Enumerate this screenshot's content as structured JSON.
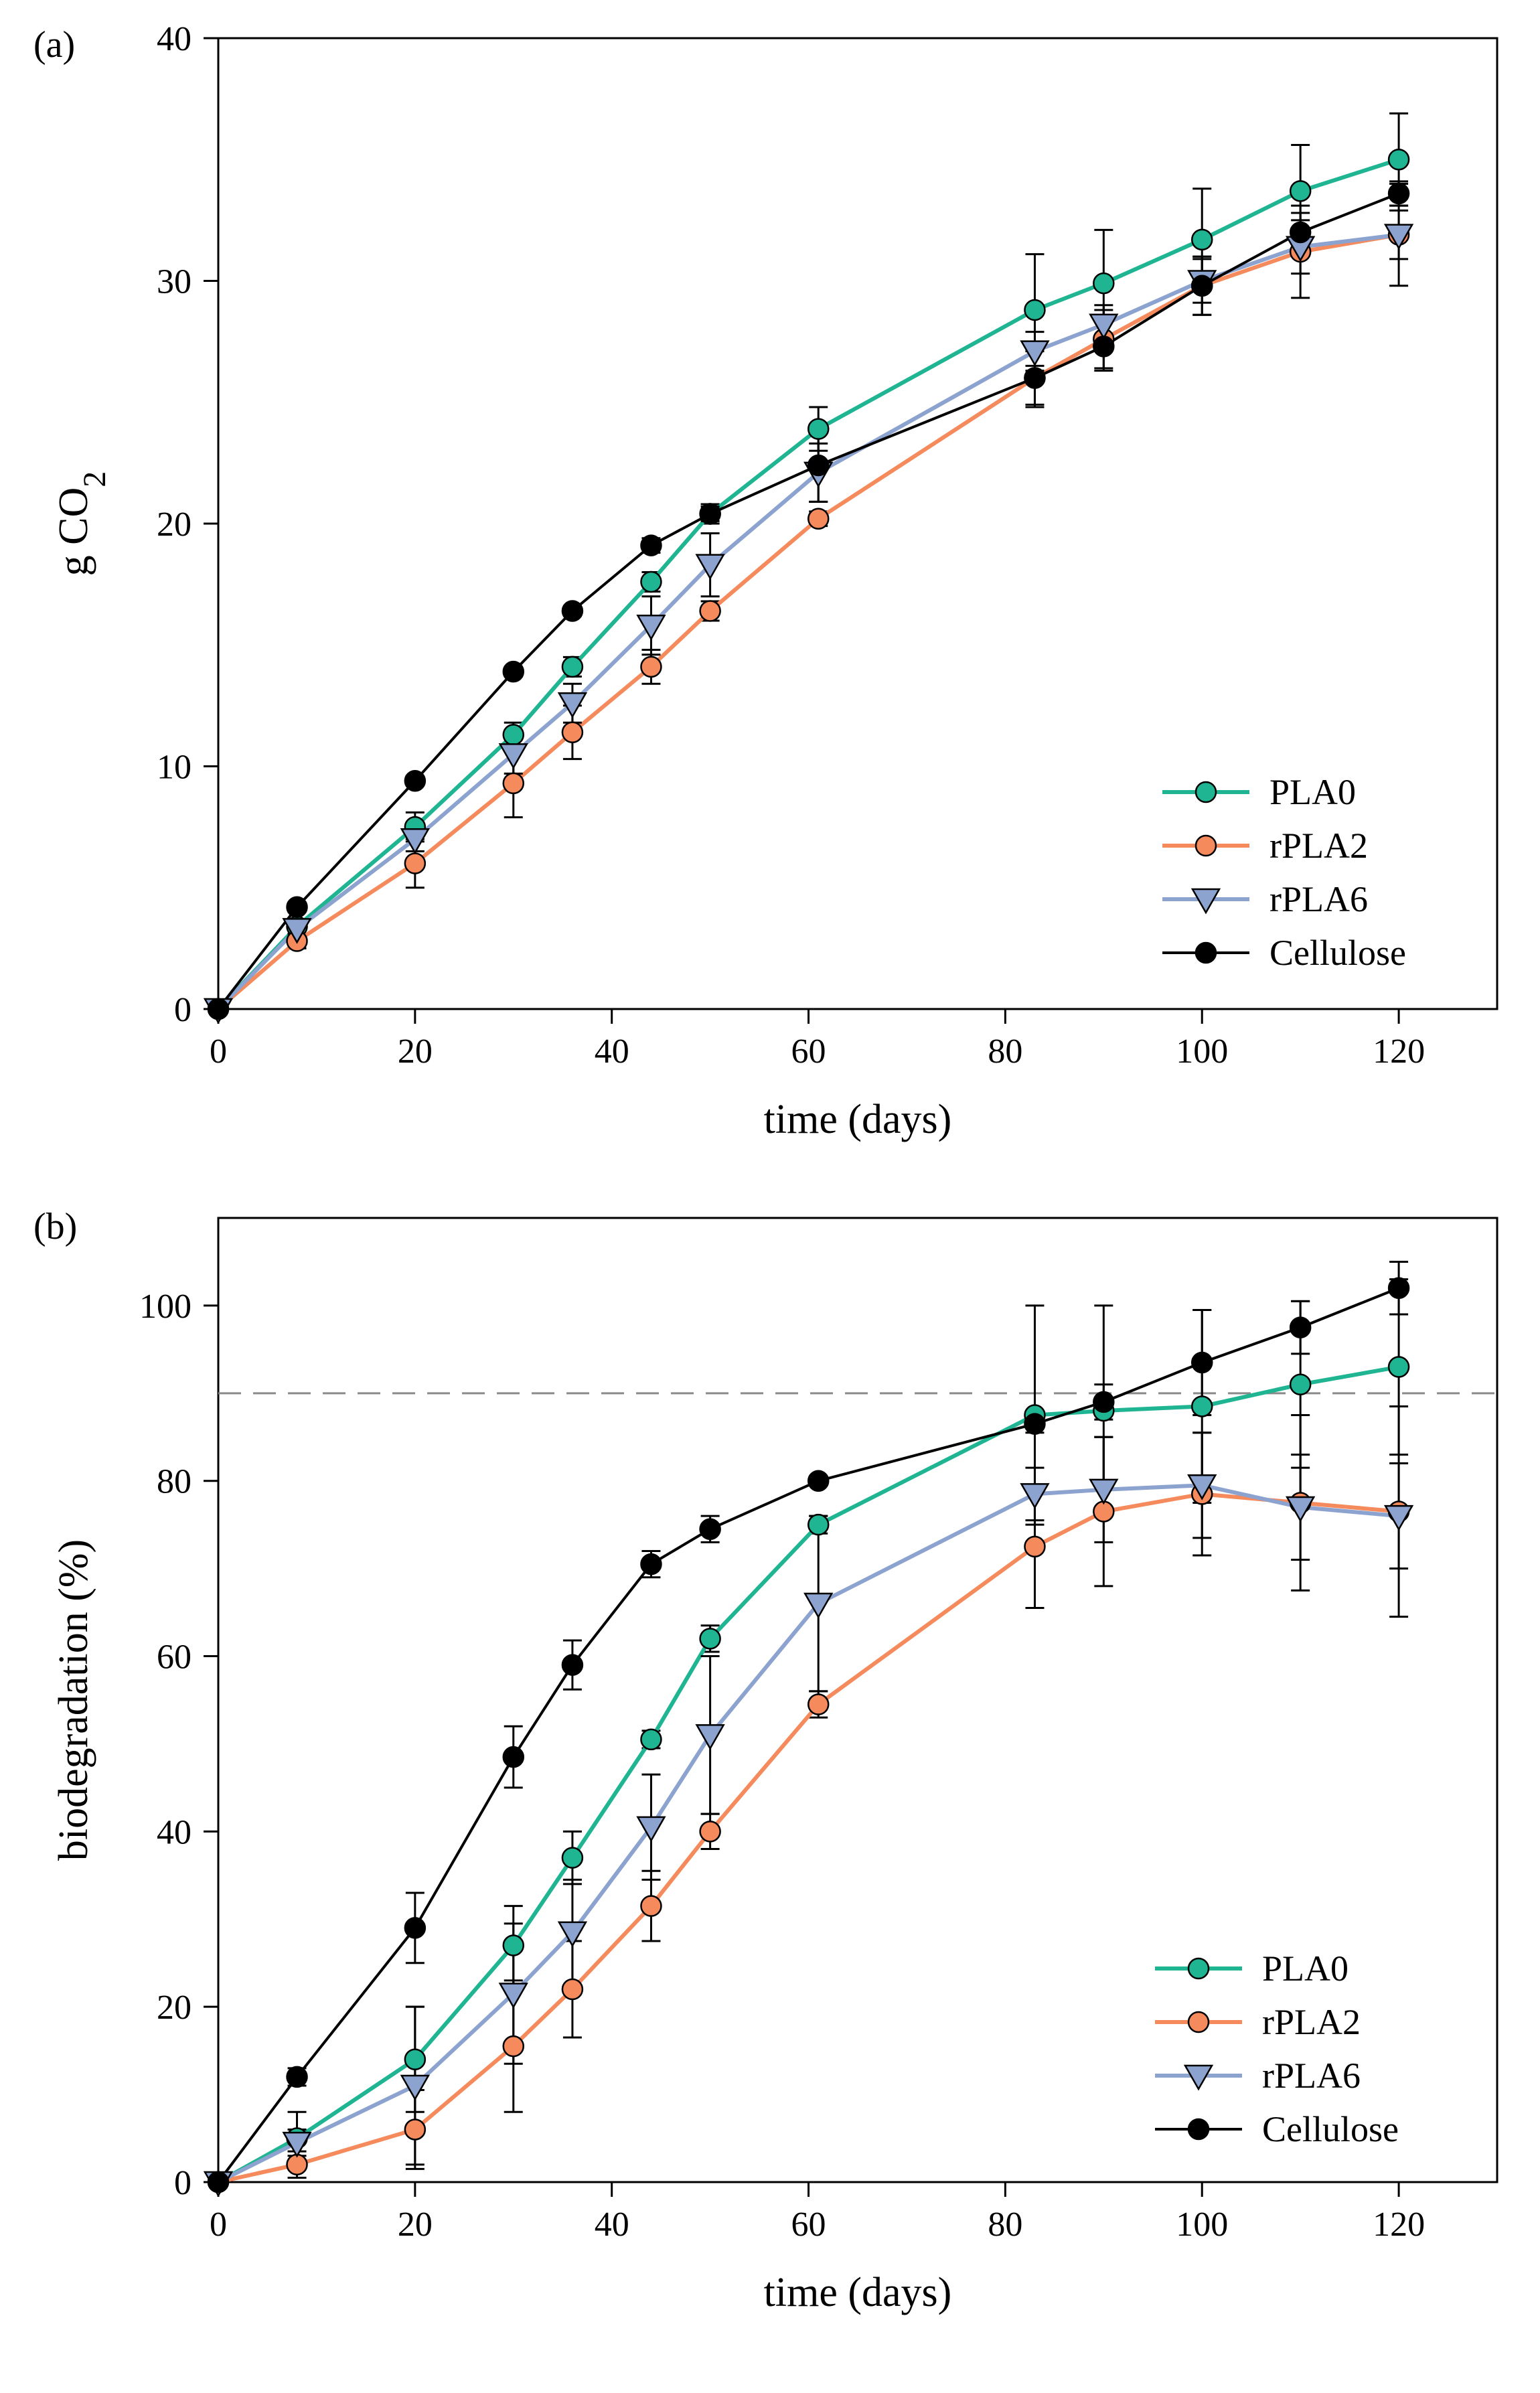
{
  "chart_data": [
    {
      "panel_label": "(a)",
      "type": "line",
      "xlabel": "time (days)",
      "ylabel_main": "g CO",
      "ylabel_sub": "2",
      "xlim": [
        0,
        130
      ],
      "ylim": [
        0,
        40
      ],
      "xticks": [
        0,
        20,
        40,
        60,
        80,
        100,
        120
      ],
      "yticks": [
        0,
        10,
        20,
        30,
        40
      ],
      "x": [
        0,
        8,
        20,
        30,
        36,
        44,
        50,
        61,
        83,
        90,
        100,
        110,
        120
      ],
      "series": [
        {
          "name": "PLA0",
          "marker": "circle",
          "color": "#1fb592",
          "values": [
            0,
            3.4,
            7.5,
            11.3,
            14.1,
            17.6,
            20.4,
            23.9,
            28.8,
            29.9,
            31.7,
            33.7,
            35.0
          ],
          "errors": [
            0,
            0.3,
            0.6,
            0.5,
            0.4,
            0.4,
            0.4,
            0.9,
            2.3,
            2.2,
            2.1,
            1.9,
            1.9
          ]
        },
        {
          "name": "rPLA2",
          "marker": "circle",
          "color": "#f58a5c",
          "values": [
            0,
            2.8,
            6.0,
            9.3,
            11.4,
            14.1,
            16.4,
            20.2,
            26.0,
            27.6,
            29.8,
            31.2,
            31.9
          ],
          "errors": [
            0,
            0.3,
            1.0,
            1.4,
            1.1,
            0.7,
            0.4,
            0.3,
            1.1,
            1.2,
            1.2,
            1.9,
            2.1
          ]
        },
        {
          "name": "rPLA6",
          "marker": "triangle-down",
          "color": "#8ca3cf",
          "values": [
            0,
            3.3,
            7.0,
            10.5,
            12.6,
            15.8,
            18.3,
            22.1,
            27.1,
            28.2,
            30.0,
            31.4,
            31.9
          ],
          "errors": [
            0,
            0.3,
            0.5,
            0.8,
            0.8,
            1.2,
            1.3,
            1.2,
            0.8,
            0.8,
            0.9,
            1.1,
            1.0
          ]
        },
        {
          "name": "Cellulose",
          "marker": "circle",
          "color": "#000000",
          "values": [
            0,
            4.2,
            9.4,
            13.9,
            16.4,
            19.1,
            20.4,
            22.4,
            26.0,
            27.3,
            29.8,
            32.0,
            33.6
          ],
          "errors": [
            0,
            0.2,
            0.2,
            0.2,
            0.2,
            0.3,
            0.3,
            1.5,
            1.2,
            1.0,
            1.2,
            0.8,
            0.5
          ]
        }
      ],
      "legend_position": "bottom-right"
    },
    {
      "panel_label": "(b)",
      "type": "line",
      "xlabel": "time (days)",
      "ylabel_main": "biodegradation (%)",
      "ylabel_sub": "",
      "xlim": [
        0,
        130
      ],
      "ylim": [
        0,
        110
      ],
      "xticks": [
        0,
        20,
        40,
        60,
        80,
        100,
        120
      ],
      "yticks": [
        0,
        20,
        40,
        60,
        80,
        100
      ],
      "reference_line_y": 90,
      "x": [
        0,
        8,
        20,
        30,
        36,
        44,
        50,
        61,
        83,
        90,
        100,
        110,
        120
      ],
      "series": [
        {
          "name": "PLA0",
          "marker": "circle",
          "color": "#1fb592",
          "values": [
            0,
            5.0,
            14.0,
            27.0,
            37.0,
            50.5,
            62.0,
            75.0,
            87.5,
            88.0,
            88.5,
            91.0,
            93.0
          ],
          "errors": [
            0,
            3.0,
            6.0,
            4.5,
            3.0,
            1.0,
            1.5,
            1.0,
            12.5,
            12.0,
            11.0,
            9.5,
            10.0
          ]
        },
        {
          "name": "rPLA2",
          "marker": "circle",
          "color": "#f58a5c",
          "values": [
            0,
            2.0,
            6.0,
            15.5,
            22.0,
            31.5,
            40.0,
            54.5,
            72.5,
            76.5,
            78.5,
            77.5,
            76.5
          ],
          "errors": [
            0,
            1.5,
            4.5,
            7.5,
            5.5,
            4.0,
            2.0,
            1.5,
            7.0,
            8.5,
            7.0,
            10.0,
            12.0
          ]
        },
        {
          "name": "rPLA6",
          "marker": "triangle-down",
          "color": "#8ca3cf",
          "values": [
            0,
            4.5,
            11.0,
            21.5,
            28.5,
            40.5,
            51.0,
            66.0,
            78.5,
            79.0,
            79.5,
            77.0,
            76.0
          ],
          "errors": [
            0,
            1.5,
            9.0,
            8.0,
            6.0,
            6.0,
            9.0,
            10.0,
            3.0,
            6.0,
            6.0,
            6.0,
            6.0
          ]
        },
        {
          "name": "Cellulose",
          "marker": "circle",
          "color": "#000000",
          "values": [
            0,
            12.0,
            29.0,
            48.5,
            59.0,
            70.5,
            74.5,
            80.0,
            86.5,
            89.0,
            93.5,
            97.5,
            102.0
          ],
          "errors": [
            0,
            1.0,
            4.0,
            3.5,
            2.8,
            1.5,
            1.5,
            0.5,
            1.0,
            2.0,
            6.0,
            3.0,
            3.0
          ]
        }
      ],
      "legend_position": "bottom-right"
    }
  ]
}
